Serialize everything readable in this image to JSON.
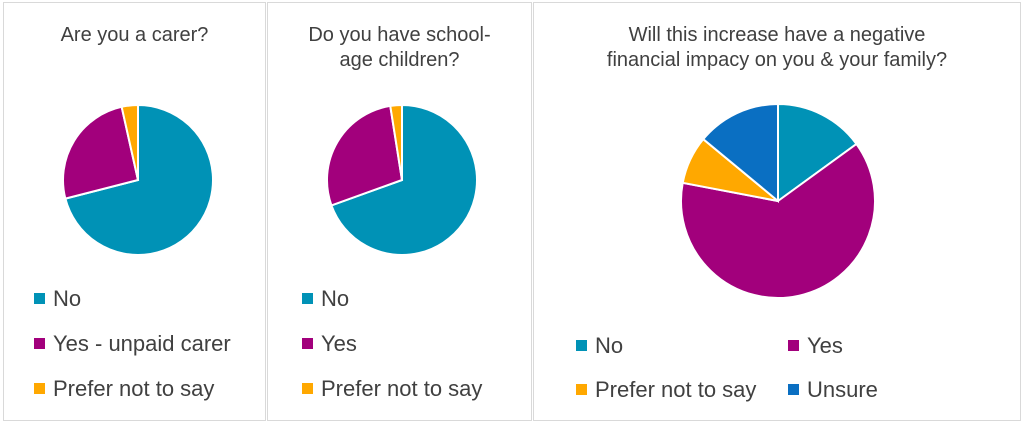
{
  "colors": {
    "no": "#0092b6",
    "yes": "#a2007c",
    "prefer": "#ffa800",
    "unsure": "#0a6fc2"
  },
  "chart_data": [
    {
      "type": "pie",
      "title_lines": [
        "Are you a carer?"
      ],
      "slices": [
        {
          "label": "No",
          "value": 71,
          "color": "#0092b6"
        },
        {
          "label": "Yes - unpaid carer",
          "value": 25.5,
          "color": "#a2007c"
        },
        {
          "label": "Prefer not to say",
          "value": 3.5,
          "color": "#ffa800"
        }
      ],
      "legend": "bottom"
    },
    {
      "type": "pie",
      "title_lines": [
        "Do you have school-",
        "age children?"
      ],
      "slices": [
        {
          "label": "No",
          "value": 69.5,
          "color": "#0092b6"
        },
        {
          "label": "Yes",
          "value": 28,
          "color": "#a2007c"
        },
        {
          "label": "Prefer not to say",
          "value": 2.5,
          "color": "#ffa800"
        }
      ],
      "legend": "bottom"
    },
    {
      "type": "pie",
      "title_lines": [
        "Will this increase have a negative",
        "financial impacy on you & your family?"
      ],
      "slices": [
        {
          "label": "No",
          "value": 15,
          "color": "#0092b6"
        },
        {
          "label": "Yes",
          "value": 63,
          "color": "#a2007c"
        },
        {
          "label": "Prefer not to say",
          "value": 8,
          "color": "#ffa800"
        },
        {
          "label": "Unsure",
          "value": 14,
          "color": "#0a6fc2"
        }
      ],
      "legend": "bottom"
    }
  ]
}
